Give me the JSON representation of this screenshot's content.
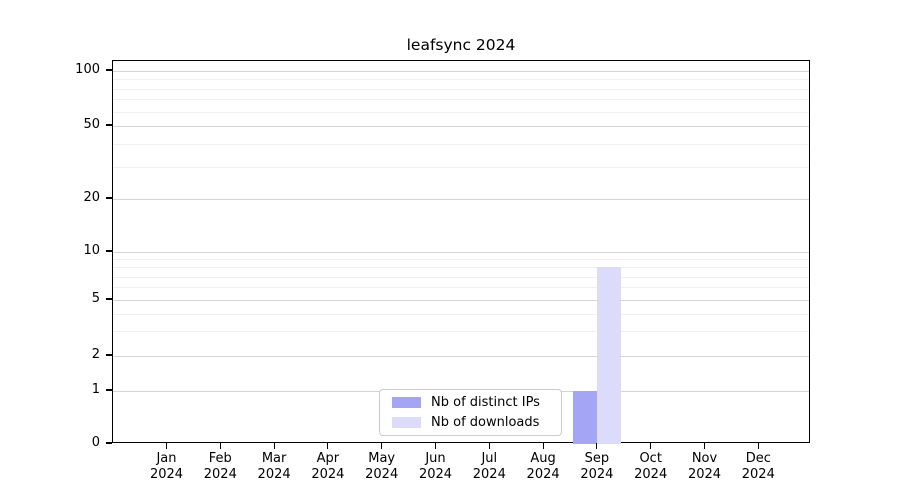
{
  "title": "leafsync 2024",
  "chart_data": {
    "type": "bar",
    "title": "leafsync 2024",
    "categories": [
      "Jan 2024",
      "Feb 2024",
      "Mar 2024",
      "Apr 2024",
      "May 2024",
      "Jun 2024",
      "Jul 2024",
      "Aug 2024",
      "Sep 2024",
      "Oct 2024",
      "Nov 2024",
      "Dec 2024"
    ],
    "series": [
      {
        "name": "Nb of distinct IPs",
        "color": "#a5a5f5",
        "values": [
          0,
          0,
          0,
          0,
          0,
          0,
          0,
          0,
          1,
          0,
          0,
          0
        ]
      },
      {
        "name": "Nb of downloads",
        "color": "#dcdcfa",
        "values": [
          0,
          0,
          0,
          0,
          0,
          0,
          0,
          0,
          8,
          0,
          0,
          0
        ]
      }
    ],
    "xlabel": "",
    "ylabel": "",
    "y_axis": {
      "scale": "symlog",
      "major_ticks": [
        0,
        1,
        2,
        5,
        10,
        20,
        50,
        100
      ],
      "minor_ticks": [
        3,
        4,
        6,
        7,
        8,
        9,
        30,
        40,
        60,
        70,
        80,
        90
      ],
      "range": [
        0,
        110
      ]
    },
    "grid": "horizontal major and minor",
    "legend_position": "lower center"
  },
  "colors": {
    "grid_major": "#d4d4d4",
    "grid_minor": "#efefef",
    "spine": "#000000",
    "background": "#ffffff",
    "text": "#000000"
  }
}
